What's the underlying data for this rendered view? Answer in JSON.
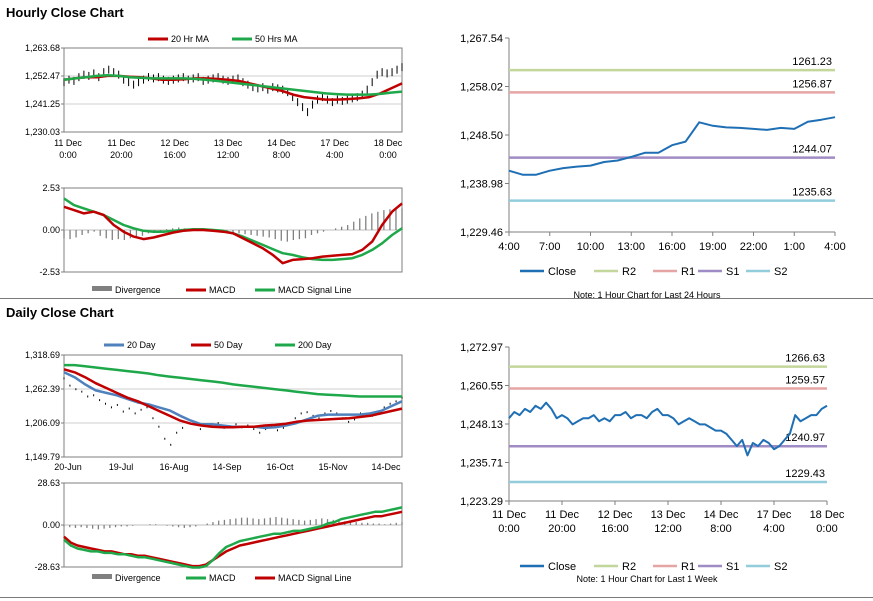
{
  "sections": {
    "hourly_title": "Hourly Close Chart",
    "daily_title": "Daily Close Chart"
  },
  "colors": {
    "ma_short": "#c00000",
    "ma_long": "#1fa84a",
    "ma_20day": "#4f81bd",
    "close": "#1f6fb5",
    "R2": "#c3d69b",
    "R1": "#e6a5a5",
    "S1": "#a08cc4",
    "S2": "#92cddc",
    "divergence": "#808080",
    "price_bar": "#000000"
  },
  "chart_data": [
    {
      "id": "hourly_price",
      "type": "line",
      "title": "Hourly Close Chart",
      "y_ticks": [
        "1,263.68",
        "1,252.47",
        "1,241.25",
        "1,230.03"
      ],
      "ylim": [
        1230.03,
        1263.68
      ],
      "x_ticks": [
        [
          "11 Dec",
          "0:00"
        ],
        [
          "11 Dec",
          "20:00"
        ],
        [
          "12 Dec",
          "16:00"
        ],
        [
          "13 Dec",
          "12:00"
        ],
        [
          "14 Dec",
          "8:00"
        ],
        [
          "17 Dec",
          "4:00"
        ],
        [
          "18 Dec",
          "0:00"
        ]
      ],
      "legend": [
        "20 Hr MA",
        "50 Hrs MA"
      ],
      "price": [
        1250,
        1251,
        1250.5,
        1252,
        1253,
        1252.5,
        1253.5,
        1252,
        1254,
        1255,
        1254,
        1253,
        1251,
        1250,
        1249,
        1250,
        1251,
        1252,
        1251.5,
        1252,
        1251,
        1250.5,
        1251,
        1251.5,
        1252,
        1251,
        1251.5,
        1252,
        1250.5,
        1251,
        1251.5,
        1252,
        1251,
        1250.5,
        1251,
        1251.5,
        1250,
        1249,
        1248,
        1247.5,
        1248,
        1247,
        1248,
        1247.5,
        1247,
        1246,
        1244,
        1242,
        1240,
        1238,
        1241,
        1243,
        1244,
        1243,
        1242,
        1243,
        1242.5,
        1243,
        1243.5,
        1244,
        1245,
        1247,
        1250,
        1253,
        1254,
        1253.5,
        1254,
        1255,
        1256
      ],
      "series": [
        {
          "name": "20 Hr MA",
          "color_key": "ma_short",
          "values": [
            1251,
            1251.5,
            1252,
            1252,
            1252.5,
            1252.5,
            1252.2,
            1252,
            1251.5,
            1251,
            1251,
            1251.2,
            1251.5,
            1251.5,
            1251.3,
            1251,
            1250.5,
            1249.5,
            1248.5,
            1247.5,
            1246.5,
            1245,
            1244,
            1243.5,
            1243,
            1243,
            1243.2,
            1243.5,
            1244,
            1245.5,
            1247.5,
            1249.5
          ]
        },
        {
          "name": "50 Hrs MA",
          "color_key": "ma_long",
          "values": [
            1251,
            1251.5,
            1252,
            1252.5,
            1252.8,
            1252.5,
            1252,
            1251.8,
            1251.5,
            1251.5,
            1251.5,
            1251.5,
            1251.3,
            1251,
            1250.5,
            1250,
            1249.5,
            1249,
            1248.5,
            1248,
            1247.5,
            1247,
            1246.5,
            1246,
            1245.5,
            1245.2,
            1245,
            1245,
            1245,
            1245.3,
            1245.8,
            1246.2
          ]
        }
      ]
    },
    {
      "id": "hourly_macd",
      "type": "line",
      "y_ticks": [
        "2.53",
        "0.00",
        "-2.53"
      ],
      "ylim": [
        -2.53,
        2.53
      ],
      "legend": [
        "Divergence",
        "MACD",
        "MACD Signal Line"
      ],
      "divergence": [
        -0.5,
        -0.55,
        -0.45,
        -0.3,
        -0.2,
        -0.1,
        -0.35,
        -0.5,
        -0.6,
        -0.55,
        -0.6,
        -0.5,
        -0.4,
        -0.35,
        -0.2,
        -0.1,
        -0.05,
        0.05,
        0.1,
        0.15,
        0.1,
        0.05,
        0.05,
        0.1,
        0.05,
        0,
        -0.05,
        -0.1,
        -0.15,
        -0.2,
        -0.25,
        -0.3,
        -0.35,
        -0.4,
        -0.45,
        -0.55,
        -0.65,
        -0.7,
        -0.6,
        -0.55,
        -0.5,
        -0.3,
        -0.2,
        -0.1,
        0,
        0.1,
        0.2,
        0.3,
        0.5,
        0.7,
        0.85,
        1,
        1.1,
        1.2,
        1.25,
        1.3,
        1.3
      ],
      "series": [
        {
          "name": "MACD",
          "color_key": "ma_short",
          "values": [
            1.4,
            1.2,
            1,
            1.1,
            0.9,
            0.3,
            -0.1,
            -0.4,
            -0.55,
            -0.45,
            -0.3,
            -0.15,
            -0.05,
            0,
            0,
            -0.05,
            -0.1,
            -0.2,
            -0.5,
            -0.8,
            -1.1,
            -1.5,
            -2.0,
            -1.8,
            -1.75,
            -1.7,
            -1.6,
            -1.55,
            -1.5,
            -1.45,
            -1.2,
            -0.7,
            0.3,
            1.1,
            1.6
          ]
        },
        {
          "name": "MACD Signal Line",
          "color_key": "ma_long",
          "values": [
            1.9,
            1.5,
            1.3,
            1.1,
            0.9,
            0.6,
            0.3,
            0.1,
            -0.05,
            -0.1,
            -0.1,
            -0.05,
            0,
            0.05,
            0.05,
            0,
            -0.05,
            -0.2,
            -0.4,
            -0.65,
            -0.9,
            -1.15,
            -1.4,
            -1.5,
            -1.65,
            -1.75,
            -1.8,
            -1.8,
            -1.75,
            -1.7,
            -1.5,
            -1.2,
            -0.8,
            -0.3,
            0.1
          ]
        }
      ]
    },
    {
      "id": "hourly_pivots",
      "type": "line",
      "y_ticks": [
        "1,267.54",
        "1,258.02",
        "1,248.50",
        "1,238.98",
        "1,229.46"
      ],
      "ylim": [
        1229.46,
        1267.54
      ],
      "x_ticks": [
        "4:00",
        "7:00",
        "10:00",
        "13:00",
        "16:00",
        "19:00",
        "22:00",
        "1:00",
        "4:00"
      ],
      "levels": [
        {
          "name": "R2",
          "value": 1261.23,
          "label": "1261.23",
          "color_key": "R2"
        },
        {
          "name": "R1",
          "value": 1256.87,
          "label": "1256.87",
          "color_key": "R1"
        },
        {
          "name": "S1",
          "value": 1244.07,
          "label": "1244.07",
          "color_key": "S1"
        },
        {
          "name": "S2",
          "value": 1235.63,
          "label": "1235.63",
          "color_key": "S2"
        }
      ],
      "close": [
        1241.5,
        1240.7,
        1240.7,
        1241.5,
        1242,
        1242.3,
        1242.5,
        1243.2,
        1243.5,
        1244.2,
        1245,
        1245,
        1246.5,
        1247.2,
        1251,
        1250.3,
        1250,
        1249.9,
        1249.7,
        1249.5,
        1249.9,
        1249.7,
        1251.1,
        1251.5,
        1252
      ]
    },
    {
      "id": "daily_price",
      "type": "line",
      "title": "Daily Close Chart",
      "y_ticks": [
        "1,318.69",
        "1,262.39",
        "1,206.09",
        "1,149.79"
      ],
      "ylim": [
        1149.79,
        1318.69
      ],
      "x_ticks": [
        "20-Jun",
        "19-Jul",
        "16-Aug",
        "14-Sep",
        "16-Oct",
        "15-Nov",
        "14-Dec"
      ],
      "legend": [
        "20 Day",
        "50 Day",
        "200 Day"
      ],
      "price": [
        1280,
        1268,
        1262,
        1258,
        1250,
        1252,
        1244,
        1238,
        1232,
        1236,
        1225,
        1230,
        1222,
        1228,
        1232,
        1214,
        1200,
        1180,
        1170,
        1190,
        1198,
        1206,
        1204,
        1196,
        1202,
        1200,
        1206,
        1198,
        1200,
        1204,
        1199,
        1202,
        1196,
        1190,
        1196,
        1200,
        1194,
        1198,
        1204,
        1214,
        1222,
        1224,
        1218,
        1214,
        1222,
        1226,
        1222,
        1214,
        1208,
        1212,
        1222,
        1220,
        1218,
        1224,
        1232,
        1238,
        1242,
        1248
      ],
      "series": [
        {
          "name": "20 Day",
          "color_key": "ma_20day",
          "values": [
            1290,
            1282,
            1270,
            1260,
            1256,
            1252,
            1246,
            1240,
            1237,
            1232,
            1227,
            1218,
            1210,
            1204,
            1204,
            1202,
            1200,
            1200,
            1200,
            1198,
            1199,
            1202,
            1206,
            1212,
            1218,
            1220,
            1220,
            1220,
            1220,
            1222,
            1226,
            1234,
            1242
          ]
        },
        {
          "name": "50 Day",
          "color_key": "ma_short",
          "values": [
            1295,
            1290,
            1282,
            1272,
            1264,
            1256,
            1248,
            1242,
            1234,
            1226,
            1218,
            1210,
            1205,
            1202,
            1200,
            1199,
            1199,
            1200,
            1200,
            1202,
            1203,
            1205,
            1208,
            1210,
            1211,
            1212,
            1213,
            1214,
            1216,
            1218,
            1222,
            1226,
            1230
          ]
        },
        {
          "name": "200 Day",
          "color_key": "ma_long",
          "values": [
            1302,
            1302,
            1300,
            1298,
            1296,
            1294,
            1292,
            1290,
            1288,
            1285,
            1283,
            1281,
            1279,
            1277,
            1275,
            1273,
            1270,
            1268,
            1266,
            1264,
            1262,
            1260,
            1258,
            1256,
            1254,
            1253,
            1252,
            1251,
            1250,
            1250,
            1250,
            1250,
            1250
          ]
        }
      ]
    },
    {
      "id": "daily_macd",
      "type": "line",
      "y_ticks": [
        "28.63",
        "0.00",
        "-28.63"
      ],
      "ylim": [
        -28.63,
        28.63
      ],
      "legend": [
        "Divergence",
        "MACD",
        "MACD Signal Line"
      ],
      "divergence": [
        -1,
        -1.5,
        -2,
        -1.5,
        -2,
        -2.5,
        -3,
        -2.5,
        -2,
        -1.5,
        -1,
        -1,
        -0.5,
        0,
        0,
        0.5,
        0.5,
        0,
        -0.5,
        -1,
        -1.5,
        -2,
        -1.5,
        -1,
        0,
        1,
        2,
        3,
        3.5,
        4,
        4.5,
        5,
        5,
        4.5,
        4,
        4.5,
        5,
        5.5,
        5,
        4.5,
        4,
        3.5,
        3,
        3.5,
        4,
        4.5,
        4,
        3.5,
        3,
        2.5,
        2,
        2,
        1.5,
        1.5,
        1,
        1,
        0.5,
        1,
        1.5,
        2
      ],
      "series": [
        {
          "name": "MACD",
          "color_key": "ma_long",
          "values": [
            -10,
            -14,
            -16,
            -17,
            -18,
            -18,
            -19,
            -19,
            -20,
            -20,
            -21,
            -22,
            -22,
            -23,
            -24,
            -25,
            -26,
            -27,
            -28,
            -29,
            -29,
            -28,
            -24,
            -19,
            -15,
            -13,
            -11,
            -10,
            -9,
            -8,
            -7,
            -6,
            -6,
            -5,
            -4,
            -4,
            -3,
            -2,
            -1,
            1,
            2,
            4,
            5,
            6,
            7,
            8,
            9,
            9,
            10,
            11,
            12
          ]
        },
        {
          "name": "MACD Signal Line",
          "color_key": "ma_short",
          "values": [
            -8,
            -12,
            -14,
            -15,
            -16,
            -17,
            -18,
            -18,
            -19,
            -20,
            -20,
            -21,
            -21,
            -22,
            -23,
            -24,
            -25,
            -26,
            -27,
            -28,
            -28,
            -27,
            -24,
            -21,
            -18,
            -16,
            -14,
            -13,
            -12,
            -11,
            -10,
            -9,
            -8,
            -7,
            -6,
            -5,
            -4,
            -3,
            -2,
            -1,
            0,
            1,
            2,
            3,
            4,
            5,
            6,
            6,
            7,
            8,
            9
          ]
        }
      ]
    },
    {
      "id": "weekly_pivots",
      "type": "line",
      "y_ticks": [
        "1,272.97",
        "1,260.55",
        "1,248.13",
        "1,235.71",
        "1,223.29"
      ],
      "ylim": [
        1223.29,
        1272.97
      ],
      "x_ticks": [
        [
          "11 Dec",
          "0:00"
        ],
        [
          "11 Dec",
          "20:00"
        ],
        [
          "12 Dec",
          "16:00"
        ],
        [
          "13 Dec",
          "12:00"
        ],
        [
          "14 Dec",
          "8:00"
        ],
        [
          "17 Dec",
          "4:00"
        ],
        [
          "18 Dec",
          "0:00"
        ]
      ],
      "levels": [
        {
          "name": "R2",
          "value": 1266.63,
          "label": "1266.63",
          "color_key": "R2"
        },
        {
          "name": "R1",
          "value": 1259.57,
          "label": "1259.57",
          "color_key": "R1"
        },
        {
          "name": "S1",
          "value": 1240.97,
          "label": "1240.97",
          "color_key": "S1"
        },
        {
          "name": "S2",
          "value": 1229.43,
          "label": "1229.43",
          "color_key": "S2"
        }
      ],
      "close": [
        1250,
        1252,
        1251,
        1253,
        1252,
        1254,
        1253,
        1255,
        1253,
        1250,
        1251,
        1250,
        1248,
        1249,
        1250,
        1250,
        1251,
        1249,
        1250,
        1249,
        1251,
        1251,
        1252,
        1250,
        1251,
        1251,
        1250,
        1252,
        1253,
        1251,
        1251,
        1250,
        1248,
        1249,
        1250,
        1249,
        1248,
        1248,
        1247,
        1246,
        1246,
        1245,
        1243,
        1241,
        1243,
        1238,
        1242,
        1241,
        1243,
        1242,
        1240,
        1241,
        1243,
        1245,
        1251,
        1249,
        1250,
        1251,
        1251,
        1253,
        1254
      ]
    }
  ],
  "notes": {
    "hourly": "Note: 1 Hour Chart for Last 24 Hours",
    "weekly": "Note: 1 Hour Chart for Last 1 Week"
  },
  "legend_right": [
    "Close",
    "R2",
    "R1",
    "S1",
    "S2"
  ]
}
